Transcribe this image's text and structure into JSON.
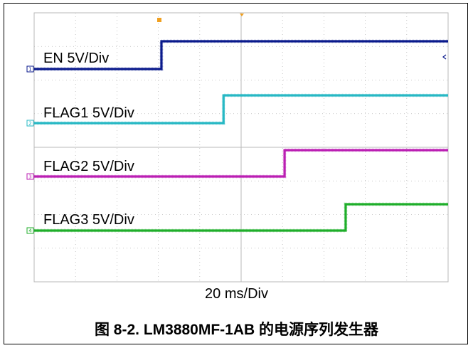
{
  "chart_data": {
    "type": "line",
    "title": "",
    "xlabel": "20 ms/Div",
    "ylabel": "",
    "xlim": [
      0,
      200
    ],
    "grid": true,
    "series": [
      {
        "name": "EN 5V/Div",
        "marker": "1",
        "color": "#0a1a8c",
        "rise_ms": 61.5
      },
      {
        "name": "FLAG1 5V/Div",
        "marker": "2",
        "color": "#27b8c4",
        "rise_ms": 91.5
      },
      {
        "name": "FLAG2 5V/Div",
        "marker": "3",
        "color": "#bb1fb3",
        "rise_ms": 121
      },
      {
        "name": "FLAG3 5V/Div",
        "marker": "4",
        "color": "#1fae2a",
        "rise_ms": 150.5
      }
    ]
  },
  "axis_labels": {
    "timebase": "20 ms/Div"
  },
  "caption": "图 8-2. LM3880MF-1AB 的电源序列发生器",
  "colors": {
    "grid": "#b8b8b8",
    "trigger_marker": "#f0a020"
  }
}
